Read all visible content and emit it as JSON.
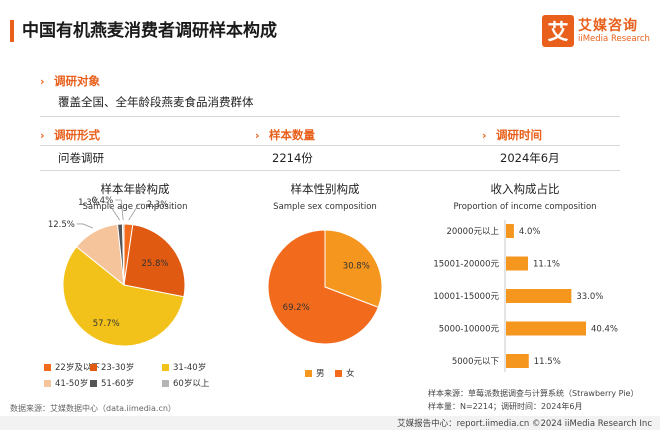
{
  "title": "中国有机燕麦消费者调研样本构成",
  "logo": {
    "cn": "艾媒咨询",
    "en": "iiMedia Research",
    "mark": "艾"
  },
  "survey": {
    "object_label": "调研对象",
    "object_value": "覆盖全国、全年龄段燕麦食品消费群体",
    "form_label": "调研形式",
    "form_value": "问卷调研",
    "size_label": "样本数量",
    "size_value": "2214份",
    "time_label": "调研时间",
    "time_value": "2024年6月"
  },
  "charts": {
    "age": {
      "title": "样本年龄构成",
      "subtitle": "Sample age composition"
    },
    "sex": {
      "title": "样本性别构成",
      "subtitle": "Sample sex composition"
    },
    "income": {
      "title": "收入构成占比",
      "subtitle": "Proportion of income composition"
    }
  },
  "chart_data": [
    {
      "type": "pie",
      "title": "样本年龄构成",
      "subtitle": "Sample age composition",
      "categories": [
        "22岁及以下",
        "23-30岁",
        "31-40岁",
        "41-50岁",
        "51-60岁",
        "60岁以上"
      ],
      "values": [
        2.3,
        25.8,
        57.7,
        12.5,
        1.3,
        0.4
      ],
      "labels": [
        "2.3%",
        "25.8%",
        "57.7%",
        "12.5%",
        "1.3%",
        "0.4%"
      ],
      "colors": [
        "#f26b1d",
        "#e05a12",
        "#f2c21b",
        "#f5c49a",
        "#555555",
        "#b5b5b5"
      ],
      "legend_position": "bottom"
    },
    {
      "type": "pie",
      "title": "样本性别构成",
      "subtitle": "Sample sex composition",
      "categories": [
        "男",
        "女"
      ],
      "values": [
        30.8,
        69.2
      ],
      "labels": [
        "30.8%",
        "69.2%"
      ],
      "colors": [
        "#f5961e",
        "#f26b1d"
      ],
      "legend_position": "bottom"
    },
    {
      "type": "bar",
      "orientation": "horizontal",
      "title": "收入构成占比",
      "subtitle": "Proportion of income composition",
      "categories": [
        "20000元以上",
        "15001-20000元",
        "10001-15000元",
        "5000-10000元",
        "5000元以下"
      ],
      "values": [
        4.0,
        11.1,
        33.0,
        40.4,
        11.5
      ],
      "labels": [
        "4.0%",
        "11.1%",
        "33.0%",
        "40.4%",
        "11.5%"
      ],
      "color": "#f5961e"
    }
  ],
  "footer": {
    "source": "数据来源：艾媒数据中心（data.iimedia.cn）",
    "note1": "样本来源：草莓派数据调查与计算系统（Strawberry Pie）",
    "note2": "样本量：N=2214；调研时间：2024年6月",
    "bottom": "艾媒报告中心：report.iimedia.cn  ©2024  iiMedia Research Inc"
  }
}
